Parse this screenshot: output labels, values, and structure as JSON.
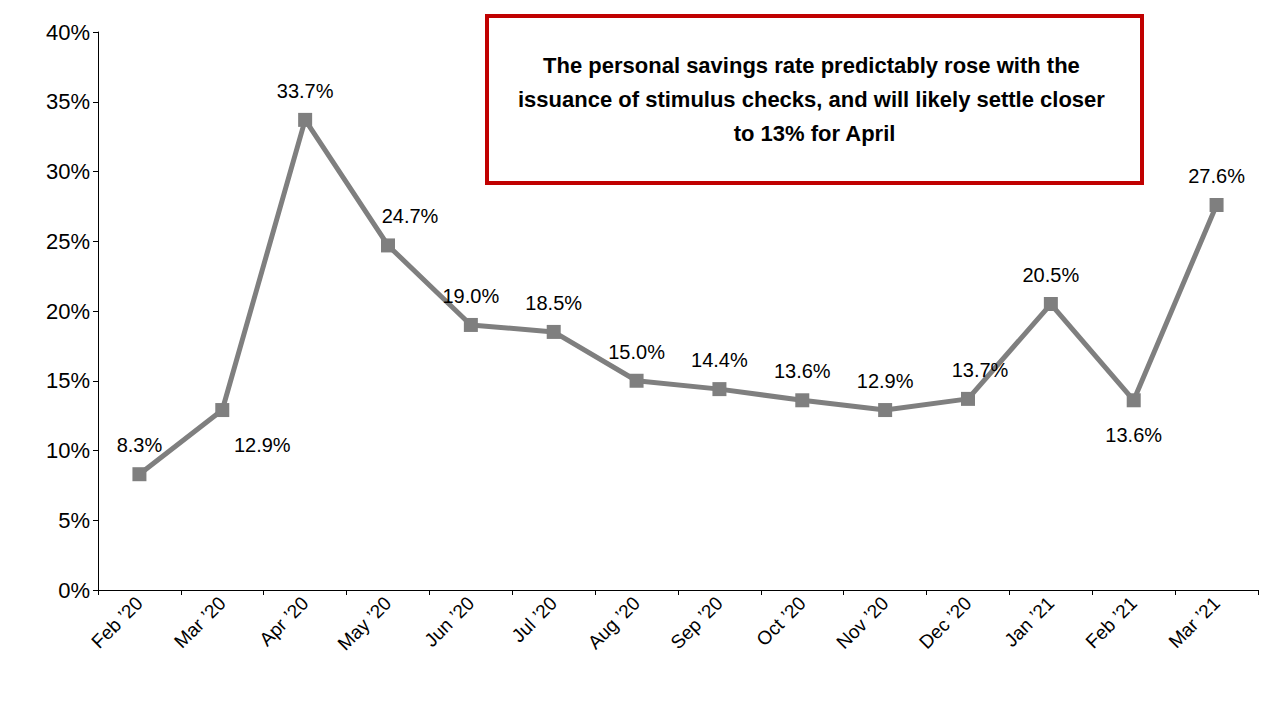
{
  "chart_data": {
    "type": "line",
    "annotation": "The personal savings rate predictably rose with the issuance of stimulus checks, and will likely settle closer to 13% for April",
    "categories": [
      "Feb ’20",
      "Mar ’20",
      "Apr ’20",
      "May ’20",
      "Jun ’20",
      "Jul ’20",
      "Aug ’20",
      "Sep ’20",
      "Oct ’20",
      "Nov ’20",
      "Dec ’20",
      "Jan ’21",
      "Feb ’21",
      "Mar ’21"
    ],
    "values": [
      8.3,
      12.9,
      33.7,
      24.7,
      19.0,
      18.5,
      15.0,
      14.4,
      13.6,
      12.9,
      13.7,
      20.5,
      13.6,
      27.6
    ],
    "value_labels": [
      "8.3%",
      "12.9%",
      "33.7%",
      "24.7%",
      "19.0%",
      "18.5%",
      "15.0%",
      "14.4%",
      "13.6%",
      "12.9%",
      "13.7%",
      "20.5%",
      "13.6%",
      "27.6%"
    ],
    "color": "#7f7f7f",
    "marker": "square",
    "line_style": "solid",
    "ylim": [
      0,
      40
    ],
    "yticks": [
      {
        "value": 0,
        "label": "0%"
      },
      {
        "value": 5,
        "label": "5%"
      },
      {
        "value": 10,
        "label": "10%"
      },
      {
        "value": 15,
        "label": "15%"
      },
      {
        "value": 20,
        "label": "20%"
      },
      {
        "value": 25,
        "label": "25%"
      },
      {
        "value": 30,
        "label": "30%"
      },
      {
        "value": 35,
        "label": "35%"
      },
      {
        "value": 40,
        "label": "40%"
      }
    ],
    "grid": false,
    "data_labels": true
  }
}
